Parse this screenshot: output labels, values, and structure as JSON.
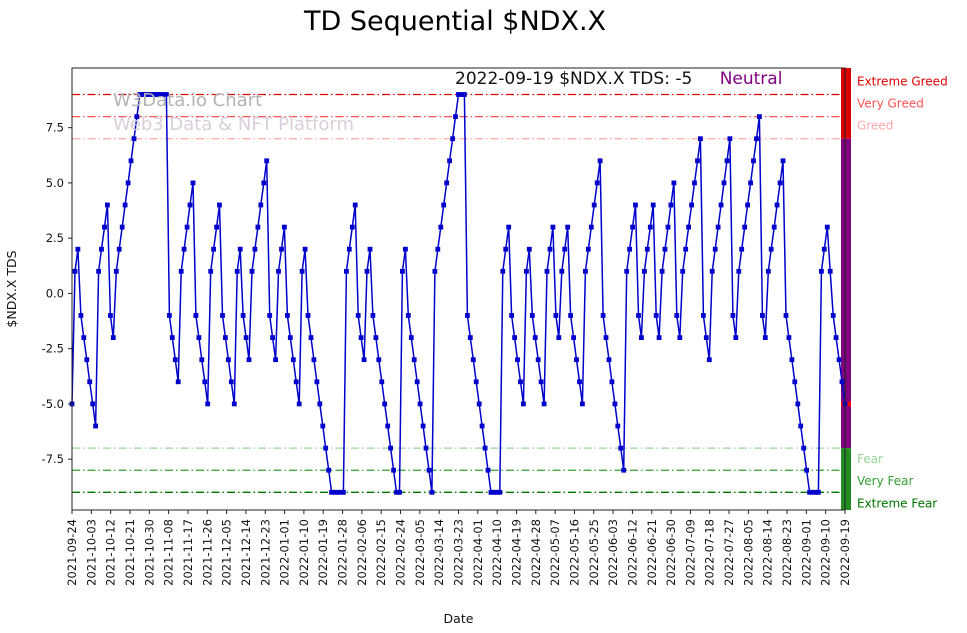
{
  "title": "TD Sequential $NDX.X",
  "watermark": {
    "line1": "W3Data.io Chart",
    "line2": "Web3 Data & NFT Platform"
  },
  "annotation": {
    "text": "2022-09-19 $NDX.X TDS: -5",
    "status": "Neutral",
    "status_color": "#800080"
  },
  "chart_data": {
    "type": "line",
    "title": "TD Sequential $NDX.X",
    "xlabel": "Date",
    "ylabel": "$NDX.X TDS",
    "ylim": [
      -9.8,
      10.2
    ],
    "yticks": [
      -7.5,
      -5.0,
      -2.5,
      0.0,
      2.5,
      5.0,
      7.5
    ],
    "line_color": "#0000cc",
    "marker": "square",
    "grid": false,
    "x_tick_labels": [
      "2021-09-24",
      "2021-10-03",
      "2021-10-12",
      "2021-10-21",
      "2021-10-30",
      "2021-11-08",
      "2021-11-17",
      "2021-11-26",
      "2021-12-05",
      "2021-12-14",
      "2021-12-23",
      "2022-01-01",
      "2022-01-10",
      "2022-01-19",
      "2022-01-28",
      "2022-02-06",
      "2022-02-15",
      "2022-02-24",
      "2022-03-05",
      "2022-03-14",
      "2022-03-23",
      "2022-04-01",
      "2022-04-10",
      "2022-04-19",
      "2022-04-28",
      "2022-05-07",
      "2022-05-16",
      "2022-05-25",
      "2022-06-03",
      "2022-06-12",
      "2022-06-21",
      "2022-06-30",
      "2022-07-09",
      "2022-07-18",
      "2022-07-27",
      "2022-08-05",
      "2022-08-14",
      "2022-08-23",
      "2022-09-01",
      "2022-09-10",
      "2022-09-19"
    ],
    "values": [
      -5,
      1,
      2,
      -1,
      -2,
      -3,
      -4,
      -5,
      -6,
      1,
      2,
      3,
      4,
      -1,
      -2,
      1,
      2,
      3,
      4,
      5,
      6,
      7,
      8,
      9,
      9,
      9,
      9,
      9,
      9,
      9,
      9,
      9,
      9,
      -1,
      -2,
      -3,
      -4,
      1,
      2,
      3,
      4,
      5,
      -1,
      -2,
      -3,
      -4,
      -5,
      1,
      2,
      3,
      4,
      -1,
      -2,
      -3,
      -4,
      -5,
      1,
      2,
      -1,
      -2,
      -3,
      1,
      2,
      3,
      4,
      5,
      6,
      -1,
      -2,
      -3,
      1,
      2,
      3,
      -1,
      -2,
      -3,
      -4,
      -5,
      1,
      2,
      -1,
      -2,
      -3,
      -4,
      -5,
      -6,
      -7,
      -8,
      -9,
      -9,
      -9,
      -9,
      -9,
      1,
      2,
      3,
      4,
      -1,
      -2,
      -3,
      1,
      2,
      -1,
      -2,
      -3,
      -4,
      -5,
      -6,
      -7,
      -8,
      -9,
      -9,
      1,
      2,
      -1,
      -2,
      -3,
      -4,
      -5,
      -6,
      -7,
      -8,
      -9,
      1,
      2,
      3,
      4,
      5,
      6,
      7,
      8,
      9,
      9,
      9,
      -1,
      -2,
      -3,
      -4,
      -5,
      -6,
      -7,
      -8,
      -9,
      -9,
      -9,
      -9,
      1,
      2,
      3,
      -1,
      -2,
      -3,
      -4,
      -5,
      1,
      2,
      -1,
      -2,
      -3,
      -4,
      -5,
      1,
      2,
      3,
      -1,
      -2,
      1,
      2,
      3,
      -1,
      -2,
      -3,
      -4,
      -5,
      1,
      2,
      3,
      4,
      5,
      6,
      -1,
      -2,
      -3,
      -4,
      -5,
      -6,
      -7,
      -8,
      1,
      2,
      3,
      4,
      -1,
      -2,
      1,
      2,
      3,
      4,
      -1,
      -2,
      1,
      2,
      3,
      4,
      5,
      -1,
      -2,
      1,
      2,
      3,
      4,
      5,
      6,
      7,
      -1,
      -2,
      -3,
      1,
      2,
      3,
      4,
      5,
      6,
      7,
      -1,
      -2,
      1,
      2,
      3,
      4,
      5,
      6,
      7,
      8,
      -1,
      -2,
      1,
      2,
      3,
      4,
      5,
      6,
      -1,
      -2,
      -3,
      -4,
      -5,
      -6,
      -7,
      -8,
      -9,
      -9,
      -9,
      -9,
      1,
      2,
      3,
      1,
      -1,
      -2,
      -3,
      -4,
      -5
    ],
    "reference_lines": [
      {
        "y": 9,
        "label": "Extreme Greed",
        "color": "#dd0000"
      },
      {
        "y": 8,
        "label": "Very Greed",
        "color": "#ff5252"
      },
      {
        "y": 7,
        "label": "Greed",
        "color": "#ffaaaa"
      },
      {
        "y": -7,
        "label": "Fear",
        "color": "#99d699"
      },
      {
        "y": -8,
        "label": "Very Fear",
        "color": "#33a033"
      },
      {
        "y": -9,
        "label": "Extreme Fear",
        "color": "#007700"
      }
    ],
    "colorbar": {
      "segments": [
        {
          "from": 10.2,
          "to": 7.0,
          "color": "#dd0000"
        },
        {
          "from": 7.0,
          "to": -7.0,
          "color": "#800080"
        },
        {
          "from": -7.0,
          "to": -9.8,
          "color": "#228B22"
        }
      ],
      "marker_value": -5,
      "marker_color": "#ff0000"
    }
  }
}
